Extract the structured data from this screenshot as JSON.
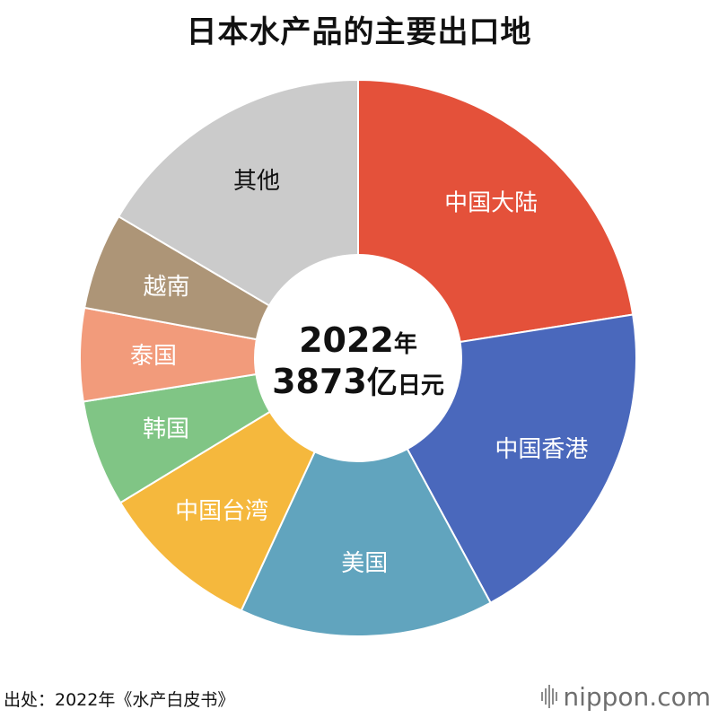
{
  "title": "日本水产品的主要出口地",
  "center": {
    "line1_number": "2022",
    "line1_unit": "年",
    "line2_number": "3873",
    "line2_unit_big": "亿",
    "line2_unit_small": "日元"
  },
  "source": "出处：2022年《水产白皮书》",
  "brand": {
    "name": "nippon",
    "suffix": ".com",
    "icon": "sound-bars-icon"
  },
  "chart_data": {
    "type": "pie",
    "title": "日本水产品的主要出口地",
    "categories": [
      "中国大陆",
      "中国香港",
      "美国",
      "中国台湾",
      "韩国",
      "泰国",
      "越南",
      "其他"
    ],
    "values": [
      22.5,
      19.6,
      14.8,
      9.4,
      6.2,
      5.4,
      5.6,
      16.5
    ],
    "unit": "%",
    "total": "3873亿日元",
    "colors": [
      "#E4513A",
      "#4A68BC",
      "#61A4BE",
      "#F5B83D",
      "#80C585",
      "#F29B7B",
      "#AD9577",
      "#CBCBCB"
    ],
    "label_colors": [
      "#ffffff",
      "#ffffff",
      "#ffffff",
      "#ffffff",
      "#ffffff",
      "#ffffff",
      "#ffffff",
      "#111111"
    ],
    "start": "12 o'clock, clockwise",
    "hole": true
  }
}
